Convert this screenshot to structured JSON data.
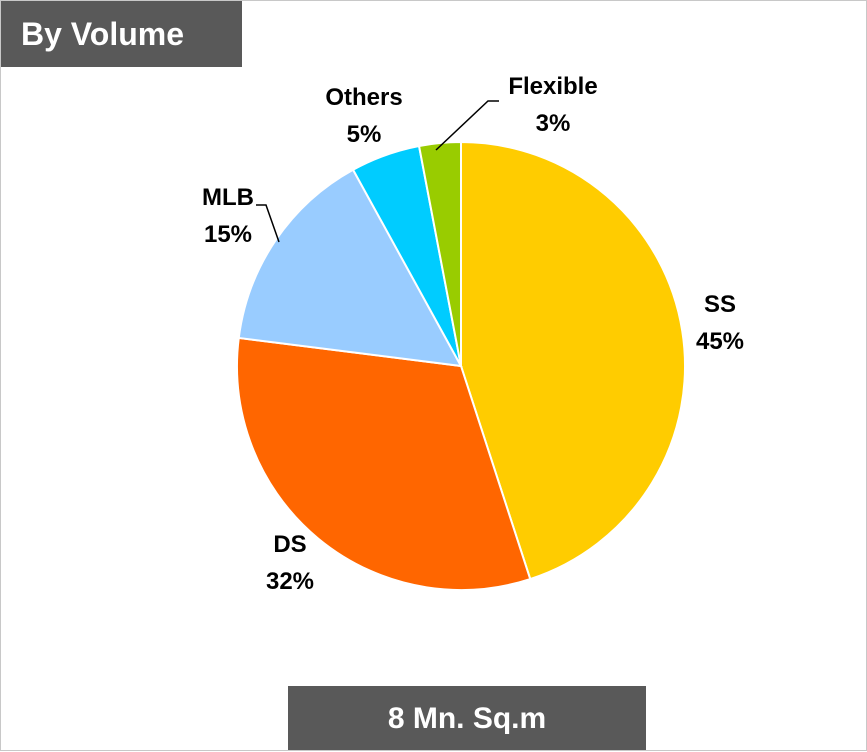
{
  "header": {
    "title": "By Volume"
  },
  "footer": {
    "total": "8 Mn. Sq.m"
  },
  "chart_data": {
    "type": "pie",
    "categories": [
      "SS",
      "DS",
      "MLB",
      "Others",
      "Flexible"
    ],
    "values": [
      45,
      32,
      15,
      5,
      3
    ],
    "value_labels": [
      "45%",
      "32%",
      "15%",
      "5%",
      "3%"
    ],
    "colors": [
      "#FFCC00",
      "#FF6600",
      "#99CCFF",
      "#00CCFF",
      "#99CC00"
    ],
    "start": "12 o'clock",
    "direction": "clockwise",
    "legend": "none",
    "title": "",
    "unit": "%"
  }
}
